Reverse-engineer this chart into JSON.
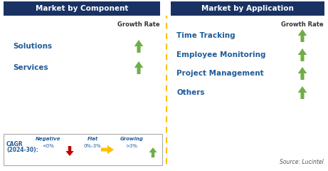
{
  "left_title": "Market by Component",
  "right_title": "Market by Application",
  "left_items": [
    "Solutions",
    "Services"
  ],
  "right_items": [
    "Time Tracking",
    "Employee Monitoring",
    "Project Management",
    "Others"
  ],
  "growth_rate_label": "Growth Rate",
  "header_bg": "#1a3263",
  "header_fg": "#ffffff",
  "item_color": "#1f5c99",
  "arrow_up_color": "#70ad47",
  "arrow_down_color": "#c00000",
  "arrow_flat_color": "#ffc000",
  "source_text": "Source: Lucintel",
  "cagr_label": "CAGR\n(2024-30):",
  "neg_label": "Negative",
  "neg_sub": "<0%",
  "flat_label": "Flat",
  "flat_sub": "0%-3%",
  "grow_label": "Growing",
  "grow_sub": ">3%",
  "divider_color": "#ffc000",
  "bg_color": "#ffffff",
  "border_color": "#aaaaaa"
}
